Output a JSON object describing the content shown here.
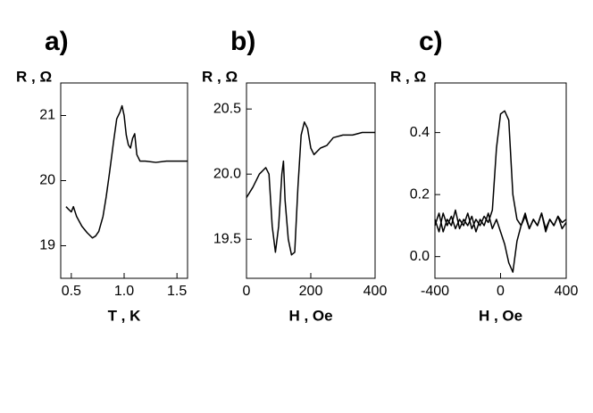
{
  "chart_data": [
    {
      "type": "line",
      "panel_label": "a)",
      "ylabel": "R , Ω",
      "xlabel": "T , K",
      "color": "#000000",
      "x": [
        0.45,
        0.48,
        0.5,
        0.52,
        0.55,
        0.6,
        0.65,
        0.7,
        0.73,
        0.76,
        0.8,
        0.83,
        0.86,
        0.9,
        0.93,
        0.96,
        0.98,
        1.0,
        1.02,
        1.04,
        1.06,
        1.08,
        1.1,
        1.12,
        1.15,
        1.2,
        1.3,
        1.4,
        1.5,
        1.6
      ],
      "values": [
        19.6,
        19.55,
        19.52,
        19.6,
        19.45,
        19.3,
        19.2,
        19.12,
        19.15,
        19.22,
        19.45,
        19.75,
        20.1,
        20.6,
        20.95,
        21.05,
        21.15,
        21.0,
        20.7,
        20.55,
        20.5,
        20.65,
        20.72,
        20.4,
        20.3,
        20.3,
        20.28,
        20.3,
        20.3,
        20.3
      ],
      "xlim": [
        0.4,
        1.6
      ],
      "ylim": [
        18.5,
        21.5
      ],
      "xticks": [
        0.5,
        {
          "value": 1,
          "label": "1.0"
        },
        1.5
      ],
      "yticks": [
        19,
        20,
        21
      ]
    },
    {
      "type": "line",
      "panel_label": "b)",
      "ylabel": "R , Ω",
      "xlabel": "H , Oe",
      "color": "#000000",
      "x": [
        0,
        20,
        40,
        60,
        70,
        80,
        90,
        100,
        110,
        115,
        120,
        130,
        140,
        150,
        160,
        170,
        180,
        190,
        200,
        210,
        230,
        250,
        270,
        300,
        330,
        360,
        400
      ],
      "values": [
        19.82,
        19.9,
        20.0,
        20.05,
        20.0,
        19.6,
        19.4,
        19.6,
        20.0,
        20.1,
        19.8,
        19.5,
        19.38,
        19.4,
        19.9,
        20.3,
        20.4,
        20.35,
        20.2,
        20.15,
        20.2,
        20.22,
        20.28,
        20.3,
        20.3,
        20.32,
        20.32
      ],
      "xlim": [
        0,
        400
      ],
      "ylim": [
        19.2,
        20.7
      ],
      "xticks": [
        0,
        200,
        400
      ],
      "yticks": [
        19.5,
        {
          "value": 20,
          "label": "20.0"
        },
        20.5
      ]
    },
    {
      "type": "line",
      "panel_label": "c)",
      "ylabel": "R , Ω",
      "xlabel": "H , Oe",
      "x": [
        -400,
        -375,
        -350,
        -325,
        -300,
        -275,
        -250,
        -225,
        -200,
        -175,
        -150,
        -125,
        -100,
        -75,
        -50,
        -25,
        0,
        25,
        50,
        75,
        100,
        125,
        150,
        175,
        200,
        225,
        250,
        275,
        300,
        325,
        350,
        375,
        400
      ],
      "series": [
        {
          "color": "#000000",
          "values": [
            0.12,
            0.08,
            0.14,
            0.1,
            0.13,
            0.09,
            0.12,
            0.1,
            0.14,
            0.09,
            0.12,
            0.1,
            0.13,
            0.11,
            0.15,
            0.35,
            0.46,
            0.47,
            0.44,
            0.2,
            0.12,
            0.1,
            0.13,
            0.09,
            0.12,
            0.1,
            0.14,
            0.09,
            0.12,
            0.1,
            0.13,
            0.11,
            0.12
          ]
        },
        {
          "color": "#000000",
          "values": [
            0.1,
            0.14,
            0.08,
            0.12,
            0.1,
            0.15,
            0.09,
            0.12,
            0.1,
            0.13,
            0.08,
            0.12,
            0.1,
            0.14,
            0.09,
            0.12,
            0.08,
            0.04,
            -0.02,
            -0.05,
            0.05,
            0.1,
            0.14,
            0.09,
            0.12,
            0.1,
            0.14,
            0.08,
            0.12,
            0.1,
            0.13,
            0.09,
            0.11
          ]
        }
      ],
      "xlim": [
        -400,
        400
      ],
      "ylim": [
        -0.07,
        0.56
      ],
      "xticks": [
        -400,
        0,
        400
      ],
      "yticks": [
        {
          "value": 0,
          "label": "0.0"
        },
        0.2,
        0.4
      ]
    }
  ]
}
